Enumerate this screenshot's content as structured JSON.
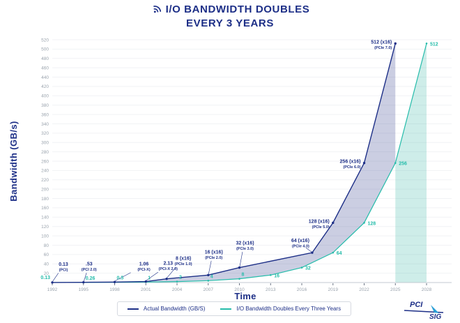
{
  "title": {
    "line1": "I/O BANDWIDTH DOUBLES",
    "line2": "EVERY 3 YEARS"
  },
  "colors": {
    "navy": "#1d2f87",
    "teal": "#25bcaa",
    "navy_fill": "rgba(82,92,158,0.30)",
    "mint_fill": "rgba(64,186,170,0.26)",
    "grid": "#f1f2f5",
    "tick": "#9aa3ad",
    "axis": "#c3c9d1",
    "tick_mark": "#6b7484"
  },
  "chart_data": {
    "type": "line",
    "title": "I/O BANDWIDTH DOUBLES EVERY 3 YEARS",
    "xlabel": "Time",
    "ylabel": "Bandwidth (GB/s)",
    "xlim": [
      1992,
      2028
    ],
    "ylim": [
      0,
      520
    ],
    "grid": true,
    "legend_position": "bottom",
    "x_ticks": [
      1992,
      1995,
      1998,
      2001,
      2004,
      2007,
      2010,
      2013,
      2016,
      2019,
      2022,
      2025,
      2028
    ],
    "y_ticks": [
      20,
      40,
      60,
      80,
      100,
      120,
      140,
      160,
      180,
      200,
      220,
      240,
      260,
      280,
      300,
      320,
      340,
      360,
      380,
      400,
      420,
      440,
      460,
      480,
      500,
      520
    ],
    "series": [
      {
        "name": "Actual Bandwidth (GB/S)",
        "color": "#1d2f87",
        "points": [
          {
            "x": 1992,
            "v": 0.13,
            "label": "0.13",
            "sublabel": "(PCI)"
          },
          {
            "x": 1995,
            "v": 0.53,
            "label": ".53",
            "sublabel": "(PCI 2.0)"
          },
          {
            "x": 1998,
            "v": 1.06,
            "label": "1.06",
            "sublabel": "(PCI-X)"
          },
          {
            "x": 2001,
            "v": 2.13,
            "label": "2.13",
            "sublabel": "(PCI-X 2.0)"
          },
          {
            "x": 2003,
            "v": 8,
            "label": "8 (x16)",
            "sublabel": "(PCIe 1.0)"
          },
          {
            "x": 2007,
            "v": 16,
            "label": "16 (x16)",
            "sublabel": "(PCIe 2.0)"
          },
          {
            "x": 2010,
            "v": 32,
            "label": "32 (x16)",
            "sublabel": "(PCIe 3.0)"
          },
          {
            "x": 2017,
            "v": 64,
            "label": "64 (x16)",
            "sublabel": "(PCIe 4.0)"
          },
          {
            "x": 2019,
            "v": 128,
            "label": "128 (x16)",
            "sublabel": "(PCIe 5.0)"
          },
          {
            "x": 2022,
            "v": 256,
            "label": "256 (x16)",
            "sublabel": "(PCIe 6.0)"
          },
          {
            "x": 2025,
            "v": 512,
            "label": "512 (x16)",
            "sublabel": "(PCIe 7.0)"
          }
        ]
      },
      {
        "name": "I/O Bandwidth Doubles Every Three Years",
        "color": "#25bcaa",
        "points": [
          {
            "x": 1992,
            "v": 0.13,
            "label": "0.13"
          },
          {
            "x": 1995,
            "v": 0.26,
            "label": "0.26"
          },
          {
            "x": 1998,
            "v": 0.5,
            "label": "0.5"
          },
          {
            "x": 2001,
            "v": 1,
            "label": "1"
          },
          {
            "x": 2004,
            "v": 2,
            "label": "2"
          },
          {
            "x": 2007,
            "v": 4,
            "label": "4"
          },
          {
            "x": 2010,
            "v": 8,
            "label": "8"
          },
          {
            "x": 2013,
            "v": 16,
            "label": "16"
          },
          {
            "x": 2016,
            "v": 32,
            "label": "32"
          },
          {
            "x": 2019,
            "v": 64,
            "label": "64"
          },
          {
            "x": 2022,
            "v": 128,
            "label": "128"
          },
          {
            "x": 2025,
            "v": 256,
            "label": "256"
          },
          {
            "x": 2028,
            "v": 512,
            "label": "512"
          }
        ]
      }
    ]
  },
  "logo": {
    "top": "PCI",
    "bottom": "SIG"
  }
}
